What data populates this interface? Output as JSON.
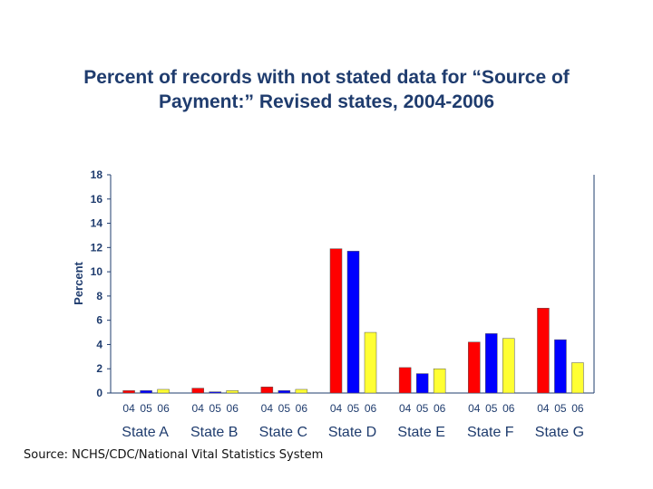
{
  "chart_data": {
    "type": "bar",
    "title_lines": [
      "Percent of records with not stated data for “Source of",
      "Payment:” Revised states, 2004-2006"
    ],
    "xlabel": "",
    "ylabel": "Percent",
    "ylim": [
      0,
      18
    ],
    "yticks": [
      0,
      2,
      4,
      6,
      8,
      10,
      12,
      14,
      16,
      18
    ],
    "categories": [
      "State A",
      "State B",
      "State C",
      "State D",
      "State E",
      "State F",
      "State G"
    ],
    "year_labels": [
      "04",
      "05",
      "06"
    ],
    "series": [
      {
        "name": "04",
        "color": "#ff0000",
        "values": [
          0.2,
          0.4,
          0.5,
          11.9,
          2.1,
          4.2,
          7.0
        ]
      },
      {
        "name": "05",
        "color": "#0000ff",
        "values": [
          0.2,
          0.1,
          0.2,
          11.7,
          1.6,
          4.9,
          4.4
        ]
      },
      {
        "name": "06",
        "color": "#ffff33",
        "values": [
          0.3,
          0.2,
          0.3,
          5.0,
          2.0,
          4.5,
          2.5
        ]
      }
    ],
    "grid": false,
    "legend": "none"
  },
  "source": "Source: NCHS/CDC/National Vital Statistics System"
}
